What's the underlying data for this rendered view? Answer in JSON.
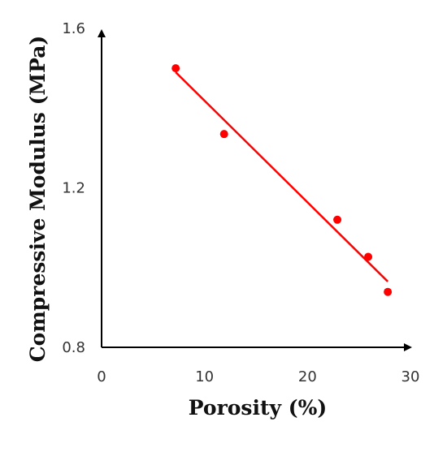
{
  "chart_data": {
    "type": "scatter",
    "title": "",
    "xlabel": "Porosity (%)",
    "ylabel": "Compressive Modulus (MPa)",
    "xlim": [
      0,
      30
    ],
    "ylim": [
      0.8,
      1.6
    ],
    "x_ticks": [
      "0",
      "10",
      "20",
      "30"
    ],
    "y_ticks": [
      "0.8",
      "1.2",
      "1.6"
    ],
    "grid": false,
    "legend": "none",
    "series": [
      {
        "x": [
          7.2,
          11.9,
          22.9,
          25.9,
          27.8
        ],
        "y": [
          1.5,
          1.335,
          1.12,
          1.027,
          0.939
        ],
        "color": "#ff0000"
      }
    ],
    "trendline": {
      "type": "linear",
      "x": [
        7.2,
        27.8
      ],
      "y": [
        1.49,
        0.965
      ],
      "color": "#ff0000"
    }
  }
}
